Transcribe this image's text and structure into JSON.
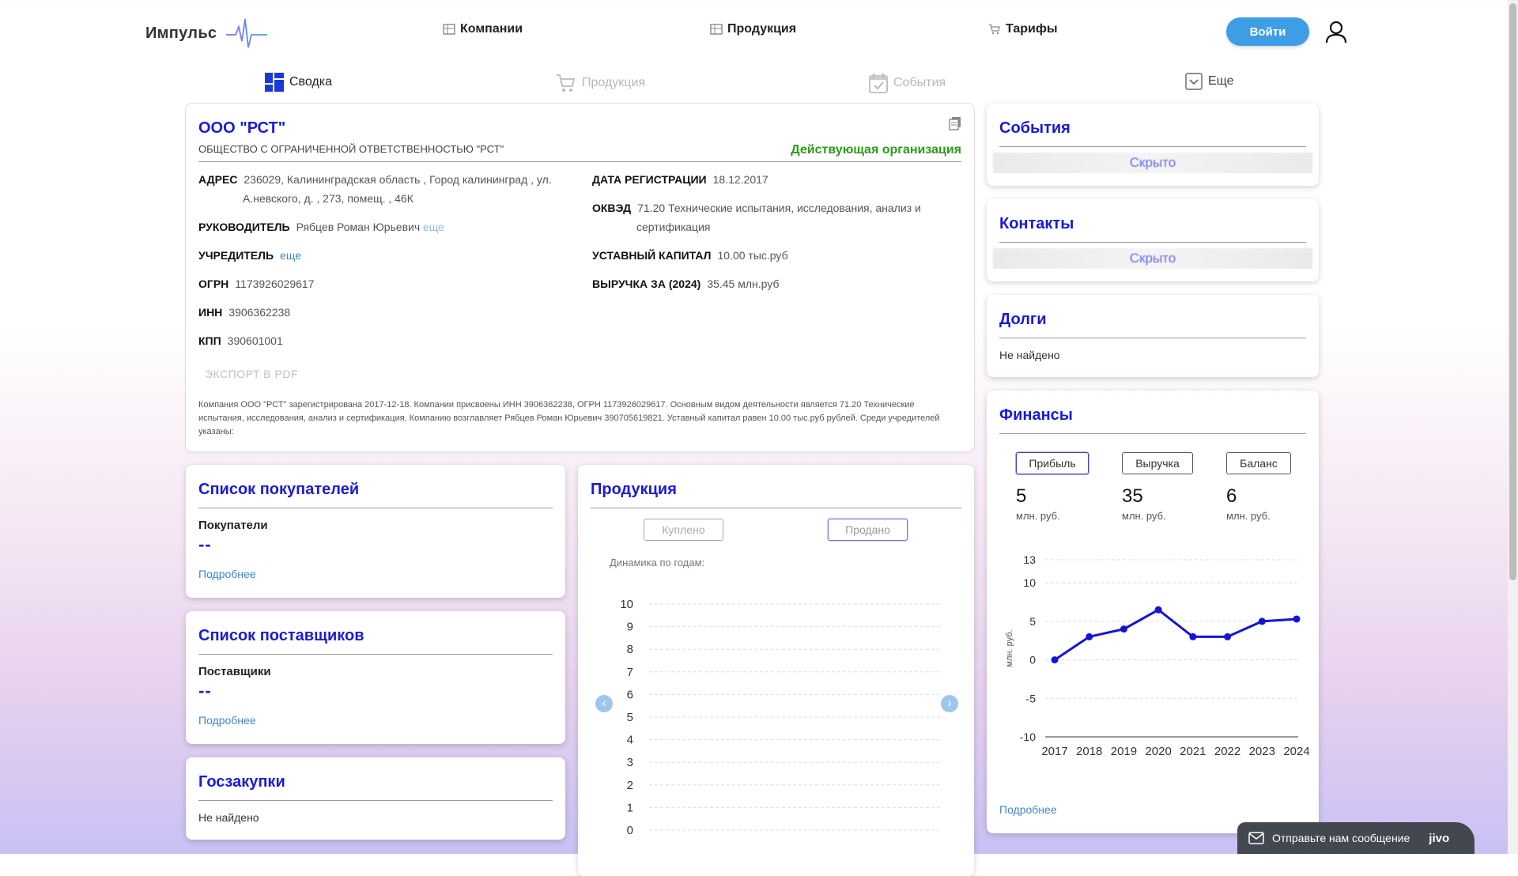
{
  "header": {
    "logo": "Импульс",
    "nav": [
      {
        "label": "Компании",
        "icon": "table-icon"
      },
      {
        "label": "Продукция",
        "icon": "table-icon"
      },
      {
        "label": "Тарифы",
        "icon": "cart-icon"
      }
    ],
    "login_label": "Войти"
  },
  "tabs": [
    {
      "label": "Сводка",
      "icon": "dashboard-icon",
      "active": true
    },
    {
      "label": "Продукция",
      "icon": "cart-icon",
      "active": false
    },
    {
      "label": "События",
      "icon": "calendar-icon",
      "active": false
    },
    {
      "label": "Еще",
      "icon": "chevron-down-icon",
      "active": false
    }
  ],
  "company": {
    "name": "ООО \"РСТ\"",
    "full_name": "ОБЩЕСТВО С ОГРАНИЧЕННОЙ ОТВЕТСТВЕННОСТЬЮ \"РСТ\"",
    "status": "Действующая организация",
    "address_label": "АДРЕС",
    "address_line1": "236029, Калининградская область , Город калининград , ул.",
    "address_line2": "А.невского, д. , 273, помещ. , 46К",
    "director_label": "РУКОВОДИТЕЛЬ",
    "director": "Рябцев Роман Юрьевич",
    "more": "еще",
    "founder_label": "УЧРЕДИТЕЛЬ",
    "founder_more": "еще",
    "ogrn_label": "ОГРН",
    "ogrn": "1173926029617",
    "inn_label": "ИНН",
    "inn": "3906362238",
    "kpp_label": "КПП",
    "kpp": "390601001",
    "reg_label": "ДАТА РЕГИСТРАЦИИ",
    "reg_date": "18.12.2017",
    "okved_label": "ОКВЭД",
    "okved_line1": "71.20 Технические испытания, исследования, анализ и",
    "okved_line2": "сертификация",
    "capital_label": "УСТАВНЫЙ КАПИТАЛ",
    "capital": "10.00 тыс.руб",
    "revenue_label": "ВЫРУЧКА ЗА (2024)",
    "revenue": "35.45 млн.руб",
    "export": "ЭКСПОРТ В PDF",
    "description": "Компания ООО \"РСТ\" зарегистрирована 2017-12-18. Компании присвоены ИНН 3906362238, ОГРН 1173926029617. Основным видом деятельности является 71.20 Технические испытания, исследования, анализ и сертификация. Компанию возглавляет Рябцев Роман Юрьевич 390705619821. Уставный капитал равен 10.00 тыс.руб рублей. Среди учредителей указаны:"
  },
  "events": {
    "title": "События",
    "hidden": "Скрыто"
  },
  "contacts": {
    "title": "Контакты",
    "hidden": "Скрыто"
  },
  "debts": {
    "title": "Долги",
    "status": "Не найдено"
  },
  "finance": {
    "title": "Финансы",
    "buttons": [
      "Прибыль",
      "Выручка",
      "Баланс"
    ],
    "values": [
      "5",
      "35",
      "6"
    ],
    "unit": "млн. руб.",
    "more": "Подробнее"
  },
  "buyers": {
    "title": "Список покупателей",
    "sub": "Покупатели",
    "value": "--",
    "more": "Подробнее"
  },
  "suppliers": {
    "title": "Список поставщиков",
    "sub": "Поставщики",
    "value": "--",
    "more": "Подробнее"
  },
  "procurement": {
    "title": "Госзакупки",
    "status": "Не найдено"
  },
  "products": {
    "title": "Продукция",
    "btn_bought": "Куплено",
    "btn_sold": "Продано",
    "dynamics": "Динамика по годам:"
  },
  "jivo": {
    "label": "Отправьте нам сообщение",
    "brand": "jivo"
  },
  "colors": {
    "accent": "#1a1ad6",
    "status": "#2c9a1c",
    "button": "#3d9ee6"
  },
  "chart_data": [
    {
      "type": "line",
      "x": [
        "2017",
        "2018",
        "2019",
        "2020",
        "2021",
        "2022",
        "2023",
        "2024"
      ],
      "series": [
        {
          "values": [
            0,
            3,
            4,
            6.5,
            3,
            3,
            5,
            5.3
          ]
        }
      ],
      "ylabel": "млн. руб.",
      "yticks": [
        13,
        10,
        5,
        0,
        -5,
        -10
      ],
      "ylim": [
        -10,
        13
      ],
      "grid": true
    },
    {
      "type": "line",
      "x": [],
      "series": [],
      "yticks": [
        10,
        9,
        8,
        7,
        6,
        5,
        4,
        3,
        2,
        1,
        0
      ],
      "ylim": [
        0,
        10
      ],
      "grid": true
    }
  ]
}
